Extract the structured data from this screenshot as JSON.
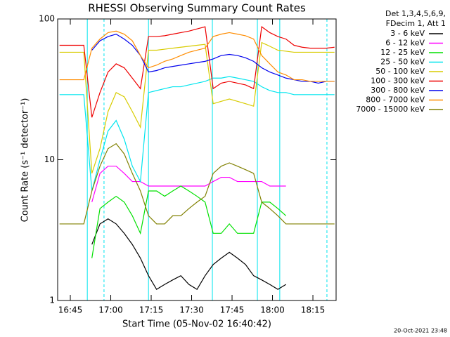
{
  "chart_data": {
    "type": "line",
    "title": "RHESSI Observing Summary Count Rates",
    "x_label": "Start Time (05-Nov-02 16:40:42)",
    "y_label": "Count Rate (s⁻¹ detector⁻¹)",
    "footer": "20-Oct-2021 23:48",
    "legend_title": [
      "Det 1,3,4,5,6,9,",
      "FDecim 1, Att 1"
    ],
    "log_y": true,
    "xlim": [
      1000.3,
      1103.6
    ],
    "xticks": [
      {
        "value": 1005,
        "label": "16:45"
      },
      {
        "value": 1020,
        "label": "17:00"
      },
      {
        "value": 1035,
        "label": "17:15"
      },
      {
        "value": 1050,
        "label": "17:30"
      },
      {
        "value": 1065,
        "label": "17:45"
      },
      {
        "value": 1080,
        "label": "18:00"
      },
      {
        "value": 1095,
        "label": "18:15"
      }
    ],
    "ylim": [
      1,
      100
    ],
    "yticks": [
      1,
      10,
      100
    ],
    "markers": [
      {
        "x": 1011.3,
        "style": "solid"
      },
      {
        "x": 1017.5,
        "style": "dashed"
      },
      {
        "x": 1034.0,
        "style": "solid"
      },
      {
        "x": 1057.7,
        "style": "solid"
      },
      {
        "x": 1074.4,
        "style": "solid"
      },
      {
        "x": 1082.7,
        "style": "solid"
      },
      {
        "x": 1100.2,
        "style": "dashed"
      }
    ],
    "marker_color": "#00e5ee",
    "x": [
      1001,
      1004,
      1007,
      1010,
      1013,
      1016,
      1019,
      1022,
      1025,
      1028,
      1031,
      1034,
      1037,
      1040,
      1043,
      1046,
      1049,
      1052,
      1055,
      1058,
      1061,
      1064,
      1067,
      1070,
      1073,
      1076,
      1079,
      1082,
      1085,
      1088,
      1091,
      1094,
      1097,
      1100,
      1103
    ],
    "series": [
      {
        "name": "3 - 6 keV",
        "color": "#000000",
        "values": [
          null,
          null,
          null,
          null,
          2.5,
          3.5,
          3.8,
          3.5,
          3,
          2.5,
          2,
          1.5,
          1.2,
          1.3,
          1.4,
          1.5,
          1.3,
          1.2,
          1.5,
          1.8,
          2,
          2.2,
          2,
          1.8,
          1.5,
          1.4,
          1.3,
          1.2,
          1.3,
          null,
          null,
          null,
          null,
          null,
          null
        ]
      },
      {
        "name": "6 - 12 keV",
        "color": "#ff00ff",
        "values": [
          null,
          null,
          null,
          null,
          5,
          8,
          9,
          9,
          8,
          7,
          7,
          6.5,
          6.5,
          6.5,
          6.5,
          6.5,
          6.5,
          6.5,
          6.5,
          7,
          7.5,
          7.5,
          7,
          7,
          7,
          7,
          6.5,
          6.5,
          6.5,
          null,
          null,
          null,
          null,
          null,
          null
        ]
      },
      {
        "name": "12 - 25 keV",
        "color": "#00e000",
        "values": [
          null,
          null,
          null,
          null,
          2,
          4.5,
          5,
          5.5,
          5,
          4,
          3,
          6,
          6,
          5.5,
          6,
          6.5,
          6,
          5.5,
          5,
          3,
          3,
          3.5,
          3,
          3,
          3,
          5,
          5,
          4.5,
          4,
          null,
          null,
          null,
          null,
          null,
          null
        ]
      },
      {
        "name": "25 - 50 keV",
        "color": "#00e5ee",
        "values": [
          29,
          29,
          29,
          29,
          6,
          10,
          16,
          19,
          14,
          9,
          7,
          30,
          31,
          32,
          33,
          33,
          34,
          35,
          36,
          38,
          38,
          39,
          38,
          37,
          36,
          33,
          31,
          30,
          30,
          29,
          29,
          29,
          29,
          29,
          29
        ]
      },
      {
        "name": "50 - 100 keV",
        "color": "#d8cc00",
        "values": [
          58,
          58,
          58,
          58,
          8,
          12,
          22,
          30,
          28,
          22,
          17,
          60,
          60,
          61,
          62,
          63,
          64,
          65,
          66,
          25,
          26,
          27,
          26,
          25,
          24,
          68,
          64,
          60,
          59,
          58,
          58,
          58,
          58,
          58,
          58
        ]
      },
      {
        "name": "100 - 300 keV",
        "color": "#ee0000",
        "values": [
          65,
          65,
          65,
          65,
          20,
          30,
          42,
          48,
          45,
          38,
          32,
          75,
          75,
          76,
          78,
          80,
          82,
          85,
          88,
          32,
          35,
          36,
          35,
          34,
          32,
          88,
          80,
          75,
          72,
          65,
          63,
          62,
          62,
          62,
          63
        ]
      },
      {
        "name": "300 - 800 keV",
        "color": "#0000ee",
        "values": [
          null,
          null,
          null,
          null,
          60,
          70,
          75,
          78,
          72,
          65,
          55,
          42,
          43,
          45,
          46,
          47,
          48,
          49,
          50,
          52,
          55,
          56,
          55,
          53,
          50,
          45,
          42,
          40,
          38,
          37,
          36,
          36,
          35,
          36,
          36
        ]
      },
      {
        "name": "800 - 7000 keV",
        "color": "#ff8c00",
        "values": [
          37,
          37,
          37,
          37,
          62,
          72,
          80,
          82,
          78,
          70,
          55,
          45,
          47,
          50,
          52,
          55,
          58,
          60,
          62,
          75,
          78,
          80,
          78,
          76,
          72,
          55,
          48,
          42,
          40,
          37,
          37,
          36,
          36,
          36,
          36
        ]
      },
      {
        "name": "7000 - 15000 keV",
        "color": "#808000",
        "values": [
          3.5,
          3.5,
          3.5,
          3.5,
          6,
          9,
          12,
          13,
          11,
          8,
          6,
          4,
          3.5,
          3.5,
          4,
          4,
          4.5,
          5,
          5.5,
          8,
          9,
          9.5,
          9,
          8.5,
          8,
          5,
          4.5,
          4,
          3.5,
          3.5,
          3.5,
          3.5,
          3.5,
          3.5,
          3.5
        ]
      }
    ]
  }
}
